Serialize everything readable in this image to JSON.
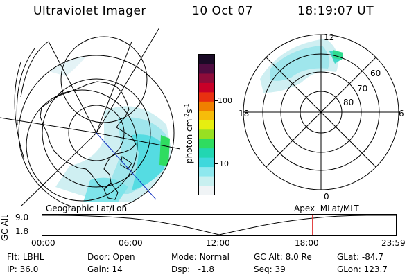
{
  "header": {
    "title": "Ultraviolet Imager",
    "date": "10 Oct 07",
    "time": "18:19:07 UT"
  },
  "colorbar": {
    "unit_label": "photon cm",
    "unit_sup1": "-2",
    "unit_mid": "s",
    "unit_sup2": "-1",
    "ticks": [
      "100",
      "10"
    ],
    "colors": [
      "#f0f4f6",
      "#c8f0f0",
      "#8ee8ee",
      "#3fd8dc",
      "#22d6b2",
      "#2fdc60",
      "#98e022",
      "#e6ee10",
      "#f6bc0a",
      "#f08000",
      "#e83010",
      "#c80028",
      "#8e0c3a",
      "#4e0c40",
      "#1a0a26"
    ]
  },
  "polar_plot": {
    "mlt_labels": {
      "top": "12",
      "left": "18",
      "right": "6",
      "bottom": "0"
    },
    "lat_labels": [
      "60",
      "70",
      "80"
    ]
  },
  "timeline": {
    "left_title": "Geographic Lat/Lon",
    "right_title": "Apex  MLat/MLT",
    "yaxis_label": "GC Alt",
    "ymax": "9.0",
    "ymin": "1.8",
    "xticks": [
      "00:00",
      "06:00",
      "12:00",
      "18:00",
      "23:59"
    ],
    "marker_time": "18:19:07",
    "altitude_profile": [
      [
        0,
        9.0
      ],
      [
        1,
        9.0
      ],
      [
        2,
        8.95
      ],
      [
        3,
        8.8
      ],
      [
        4,
        8.6
      ],
      [
        5,
        8.3
      ],
      [
        6,
        7.9
      ],
      [
        7,
        7.3
      ],
      [
        8,
        6.5
      ],
      [
        9,
        5.5
      ],
      [
        10,
        4.4
      ],
      [
        11,
        3.1
      ],
      [
        12,
        1.8
      ],
      [
        13,
        3.0
      ],
      [
        14,
        4.2
      ],
      [
        15,
        5.3
      ],
      [
        16,
        6.3
      ],
      [
        17,
        7.1
      ],
      [
        18,
        7.8
      ],
      [
        19,
        8.3
      ],
      [
        20,
        8.7
      ],
      [
        21,
        8.9
      ],
      [
        22,
        9.0
      ],
      [
        23,
        9.0
      ],
      [
        23.98,
        9.0
      ]
    ]
  },
  "info": [
    [
      {
        "label": "Flt:",
        "value": "LBHL"
      },
      {
        "label": "Door:",
        "value": "Open"
      },
      {
        "label": "Mode:",
        "value": "Normal"
      },
      {
        "label": "GC Alt:",
        "value": "8.0 Re"
      },
      {
        "label": "GLat:",
        "value": "-84.7"
      }
    ],
    [
      {
        "label": "IP:",
        "value": "36.0"
      },
      {
        "label": "Gain:",
        "value": "14"
      },
      {
        "label": "Dsp:",
        "value": "-1.8"
      },
      {
        "label": "Seq:",
        "value": "39"
      },
      {
        "label": "GLon:",
        "value": "123.7"
      }
    ]
  ]
}
